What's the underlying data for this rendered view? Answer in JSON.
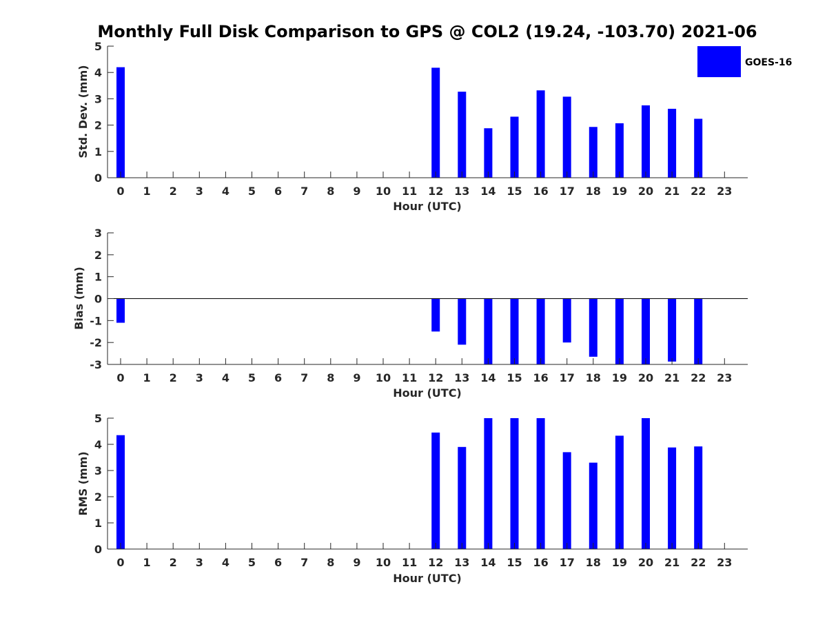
{
  "chart_data": [
    {
      "type": "bar",
      "title": "Monthly Full Disk Comparison to GPS @ COL2 (19.24, -103.70) 2021-06",
      "xlabel": "Hour (UTC)",
      "ylabel": "Std. Dev. (mm)",
      "categories": [
        "0",
        "1",
        "2",
        "3",
        "4",
        "5",
        "6",
        "7",
        "8",
        "9",
        "10",
        "11",
        "12",
        "13",
        "14",
        "15",
        "16",
        "17",
        "18",
        "19",
        "20",
        "21",
        "22",
        "23"
      ],
      "series": [
        {
          "name": "GOES-16",
          "values": [
            4.2,
            null,
            null,
            null,
            null,
            null,
            null,
            null,
            null,
            null,
            null,
            null,
            4.18,
            3.27,
            1.88,
            2.32,
            3.32,
            3.08,
            1.93,
            2.07,
            2.75,
            2.62,
            2.24,
            null
          ]
        }
      ],
      "ylim": [
        0,
        5
      ],
      "yticks": [
        "0",
        "1",
        "2",
        "3",
        "4",
        "5"
      ],
      "legend": "top-right",
      "grid": false
    },
    {
      "type": "bar",
      "xlabel": "Hour (UTC)",
      "ylabel": "Bias (mm)",
      "categories": [
        "0",
        "1",
        "2",
        "3",
        "4",
        "5",
        "6",
        "7",
        "8",
        "9",
        "10",
        "11",
        "12",
        "13",
        "14",
        "15",
        "16",
        "17",
        "18",
        "19",
        "20",
        "21",
        "22",
        "23"
      ],
      "series": [
        {
          "name": "GOES-16",
          "values": [
            -1.1,
            null,
            null,
            null,
            null,
            null,
            null,
            null,
            null,
            null,
            null,
            null,
            -1.5,
            -2.1,
            -3.0,
            -3.0,
            -3.0,
            -2.0,
            -2.65,
            -3.0,
            -3.0,
            -2.87,
            -3.0,
            null
          ]
        }
      ],
      "ylim": [
        -3,
        3
      ],
      "yticks": [
        "-3",
        "-2",
        "-1",
        "0",
        "1",
        "2",
        "3"
      ],
      "grid": false
    },
    {
      "type": "bar",
      "xlabel": "Hour (UTC)",
      "ylabel": "RMS (mm)",
      "categories": [
        "0",
        "1",
        "2",
        "3",
        "4",
        "5",
        "6",
        "7",
        "8",
        "9",
        "10",
        "11",
        "12",
        "13",
        "14",
        "15",
        "16",
        "17",
        "18",
        "19",
        "20",
        "21",
        "22",
        "23"
      ],
      "series": [
        {
          "name": "GOES-16",
          "values": [
            4.35,
            null,
            null,
            null,
            null,
            null,
            null,
            null,
            null,
            null,
            null,
            null,
            4.45,
            3.9,
            5.0,
            5.0,
            5.0,
            3.7,
            3.3,
            4.33,
            5.0,
            3.88,
            3.92,
            null
          ]
        }
      ],
      "ylim": [
        0,
        5
      ],
      "yticks": [
        "0",
        "1",
        "2",
        "3",
        "4",
        "5"
      ],
      "grid": false
    }
  ],
  "colors": {
    "bar": "#0000ff",
    "axis": "#262626"
  }
}
